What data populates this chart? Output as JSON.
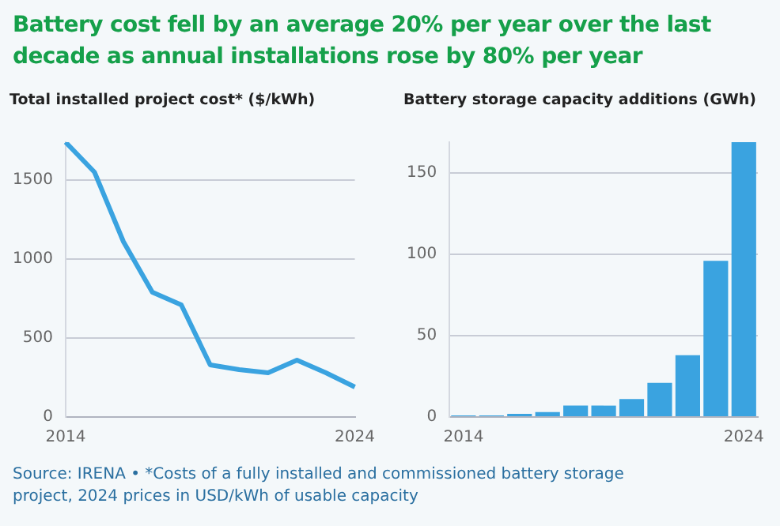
{
  "chart_data": [
    {
      "type": "line",
      "title": "Battery cost fell by an average 20% per year over the last decade as annual installations rose by 80% per year",
      "subtitle": "Total installed project cost* ($/kWh)",
      "categories": [
        "2014",
        null,
        null,
        null,
        null,
        null,
        null,
        null,
        null,
        null,
        "2024"
      ],
      "values": [
        1740,
        1550,
        1110,
        790,
        710,
        330,
        300,
        280,
        360,
        280,
        190
      ],
      "color": "#3aa3e0",
      "ylim": [
        0,
        1740
      ],
      "yticks": [
        0,
        500,
        1000,
        1500
      ],
      "grid": "y",
      "marker": "none",
      "annotations": [
        "Source: IRENA • *Costs of a fully installed and commissioned battery storage project, 2024 prices in USD/kWh of usable capacity"
      ]
    },
    {
      "type": "bar",
      "subtitle": "Battery storage capacity additions (GWh)",
      "categories": [
        "2014",
        null,
        null,
        null,
        null,
        null,
        null,
        null,
        null,
        null,
        "2024"
      ],
      "values": [
        1,
        1,
        2,
        3,
        7,
        7,
        11,
        21,
        38,
        96,
        169
      ],
      "color": "#3aa3e0",
      "ylim": [
        0,
        169
      ],
      "yticks": [
        0,
        50,
        100,
        150
      ],
      "grid": "y"
    }
  ]
}
